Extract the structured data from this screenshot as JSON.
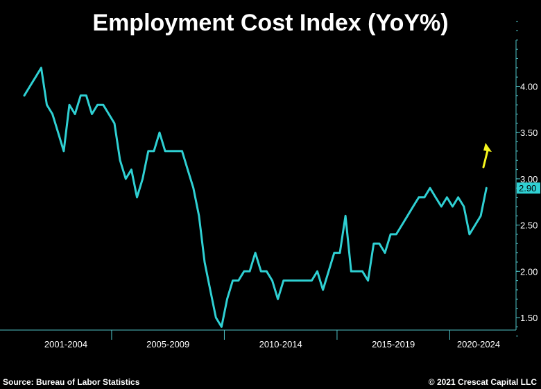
{
  "chart_data": {
    "type": "line",
    "title": "Employment Cost Index (YoY%)",
    "xlabel": "",
    "ylabel": "",
    "ylim": [
      1.2,
      4.7
    ],
    "y_ticks": [
      "1.50",
      "2.00",
      "2.50",
      "3.00",
      "3.50",
      "4.00"
    ],
    "period_labels": [
      "2001-2004",
      "2005-2009",
      "2010-2014",
      "2015-2019",
      "2020-2024"
    ],
    "x_quarter_start": "2001Q1",
    "series": [
      {
        "values": [
          3.9,
          4.0,
          4.1,
          4.2,
          3.8,
          3.7,
          3.5,
          3.3,
          3.8,
          3.7,
          3.9,
          3.9,
          3.7,
          3.8,
          3.8,
          3.7,
          3.6,
          3.2,
          3.0,
          3.1,
          2.8,
          3.0,
          3.3,
          3.3,
          3.5,
          3.3,
          3.3,
          3.3,
          3.3,
          3.1,
          2.9,
          2.6,
          2.1,
          1.8,
          1.5,
          1.4,
          1.7,
          1.9,
          1.9,
          2.0,
          2.0,
          2.2,
          2.0,
          2.0,
          1.9,
          1.7,
          1.9,
          1.9,
          1.9,
          1.9,
          1.9,
          1.9,
          2.0,
          1.8,
          2.0,
          2.2,
          2.2,
          2.6,
          2.0,
          2.0,
          2.0,
          1.9,
          2.3,
          2.3,
          2.2,
          2.4,
          2.4,
          2.5,
          2.6,
          2.7,
          2.8,
          2.8,
          2.9,
          2.8,
          2.7,
          2.8,
          2.7,
          2.8,
          2.7,
          2.4,
          2.5,
          2.6,
          2.9
        ]
      }
    ],
    "last_value_label": "2.90",
    "line_color": "#2fd0d3",
    "arrow_color": "#f5f51e"
  },
  "footer": {
    "source": "Source: Bureau of Labor Statistics",
    "copyright": "© 2021 Crescat Capital LLC"
  }
}
